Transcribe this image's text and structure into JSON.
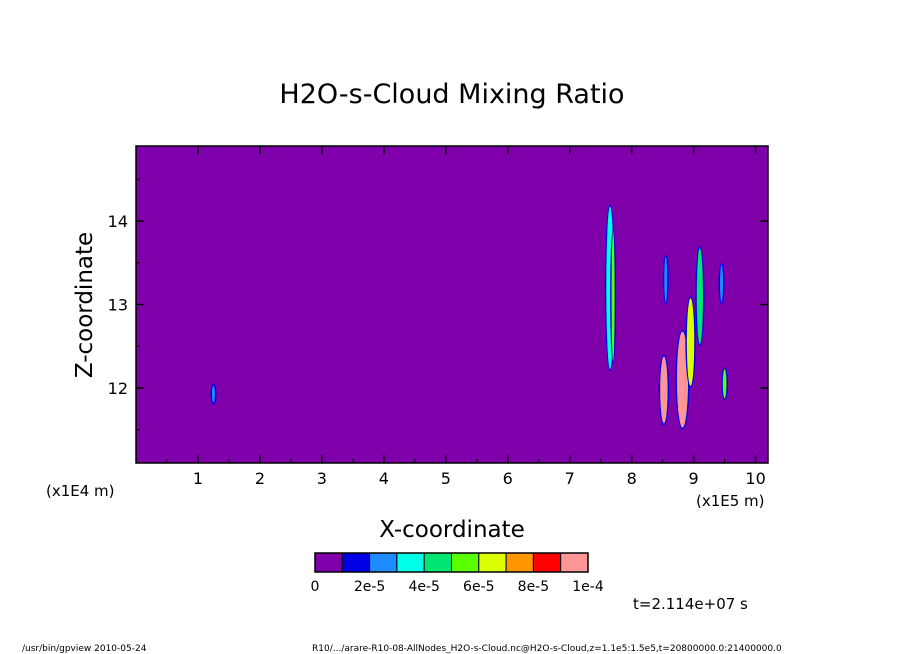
{
  "chart_data": {
    "type": "heatmap",
    "title": "H2O-s-Cloud Mixing Ratio",
    "xlabel": "X-coordinate",
    "ylabel": "Z-coordinate",
    "x_scale_note": "(x1E5 m)",
    "y_scale_note": "(x1E4 m)",
    "xlim": [
      0,
      10.2
    ],
    "ylim": [
      11.1,
      14.9
    ],
    "x_ticks": [
      1,
      2,
      3,
      4,
      5,
      6,
      7,
      8,
      9,
      10
    ],
    "y_ticks": [
      12,
      13,
      14
    ],
    "x_tick_labels": [
      "1",
      "2",
      "3",
      "4",
      "5",
      "6",
      "7",
      "8",
      "9",
      "10"
    ],
    "y_tick_labels": [
      "12",
      "13",
      "14"
    ],
    "background_color": "#7f00aa",
    "colorbar": {
      "colors": [
        "#7f00aa",
        "#0000e6",
        "#1e8cff",
        "#00ffe6",
        "#00e673",
        "#5aff00",
        "#dcff00",
        "#ff9600",
        "#ff0000",
        "#ff9696"
      ],
      "tick_labels": [
        "0",
        "2e-5",
        "4e-5",
        "6e-5",
        "8e-5",
        "1e-4"
      ]
    },
    "features": [
      {
        "x": 7.65,
        "z0": 12.2,
        "z1": 14.2,
        "w": 0.12,
        "level": 3
      },
      {
        "x": 7.7,
        "z0": 12.3,
        "z1": 13.9,
        "w": 0.05,
        "level": 5
      },
      {
        "x": 8.52,
        "z0": 11.55,
        "z1": 12.4,
        "w": 0.12,
        "level": 9
      },
      {
        "x": 8.82,
        "z0": 11.5,
        "z1": 12.7,
        "w": 0.18,
        "level": 9
      },
      {
        "x": 8.95,
        "z0": 12.0,
        "z1": 13.1,
        "w": 0.12,
        "level": 6
      },
      {
        "x": 9.1,
        "z0": 12.5,
        "z1": 13.7,
        "w": 0.1,
        "level": 4
      },
      {
        "x": 9.5,
        "z0": 11.85,
        "z1": 12.25,
        "w": 0.06,
        "level": 5
      },
      {
        "x": 1.25,
        "z0": 11.8,
        "z1": 12.05,
        "w": 0.03,
        "level": 2
      },
      {
        "x": 8.55,
        "z0": 13.0,
        "z1": 13.6,
        "w": 0.04,
        "level": 2
      },
      {
        "x": 9.45,
        "z0": 13.0,
        "z1": 13.5,
        "w": 0.03,
        "level": 2
      }
    ]
  },
  "time_label": "t=2.114e+07 s",
  "footer_left": "/usr/bin/gpview   2010-05-24",
  "footer_right": "R10/.../arare-R10-08-AllNodes_H2O-s-Cloud.nc@H2O-s-Cloud,z=1.1e5:1.5e5,t=20800000.0:21400000.0"
}
